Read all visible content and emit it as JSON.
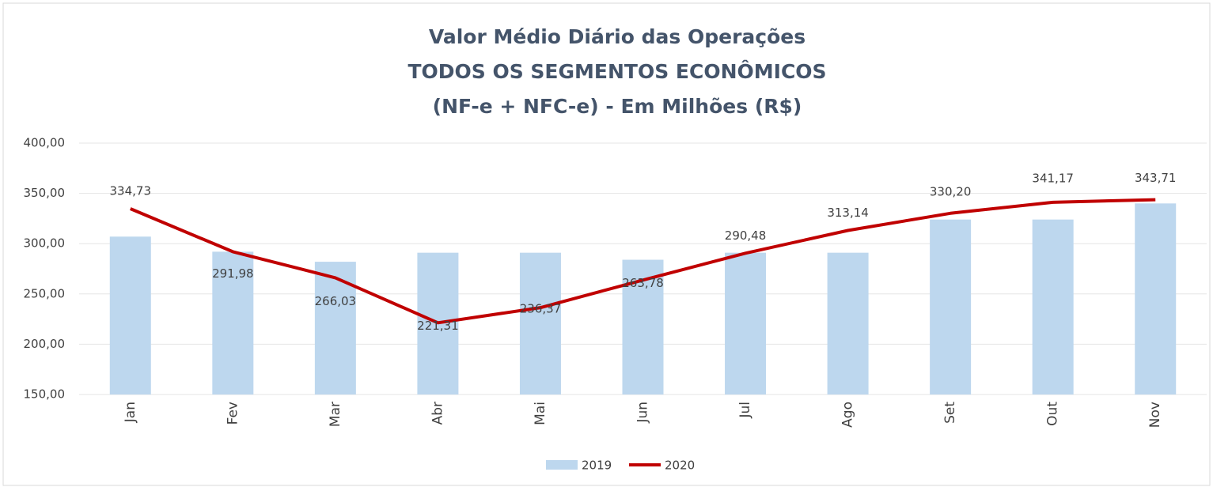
{
  "chart_data": {
    "type": "combo",
    "title": [
      "Valor Médio Diário das Operações",
      "TODOS OS SEGMENTOS ECONÔMICOS",
      "(NF-e + NFC-e) - Em Milhões (R$)"
    ],
    "categories": [
      "Jan",
      "Fev",
      "Mar",
      "Abr",
      "Mai",
      "Jun",
      "Jul",
      "Ago",
      "Set",
      "Out",
      "Nov"
    ],
    "series": [
      {
        "name": "2019",
        "type": "bar",
        "color": "#bdd7ee",
        "values": [
          307,
          292,
          282,
          291,
          291,
          284,
          291,
          291,
          324,
          324,
          340
        ]
      },
      {
        "name": "2020",
        "type": "line",
        "color": "#c00000",
        "values": [
          334.73,
          291.98,
          266.03,
          221.31,
          236.37,
          263.78,
          290.48,
          313.14,
          330.2,
          341.17,
          343.71
        ],
        "value_labels": [
          "334,73",
          "291,98",
          "266,03",
          "221,31",
          "236,37",
          "263,78",
          "290,48",
          "313,14",
          "330,20",
          "341,17",
          "343,71"
        ]
      }
    ],
    "ylim": [
      150,
      400
    ],
    "yticks": [
      {
        "value": 150,
        "label": "150,00"
      },
      {
        "value": 200,
        "label": "200,00"
      },
      {
        "value": 250,
        "label": "250,00"
      },
      {
        "value": 300,
        "label": "300,00"
      },
      {
        "value": 350,
        "label": "350,00"
      },
      {
        "value": 400,
        "label": "400,00"
      }
    ],
    "grid": true,
    "legend": "bottom"
  }
}
